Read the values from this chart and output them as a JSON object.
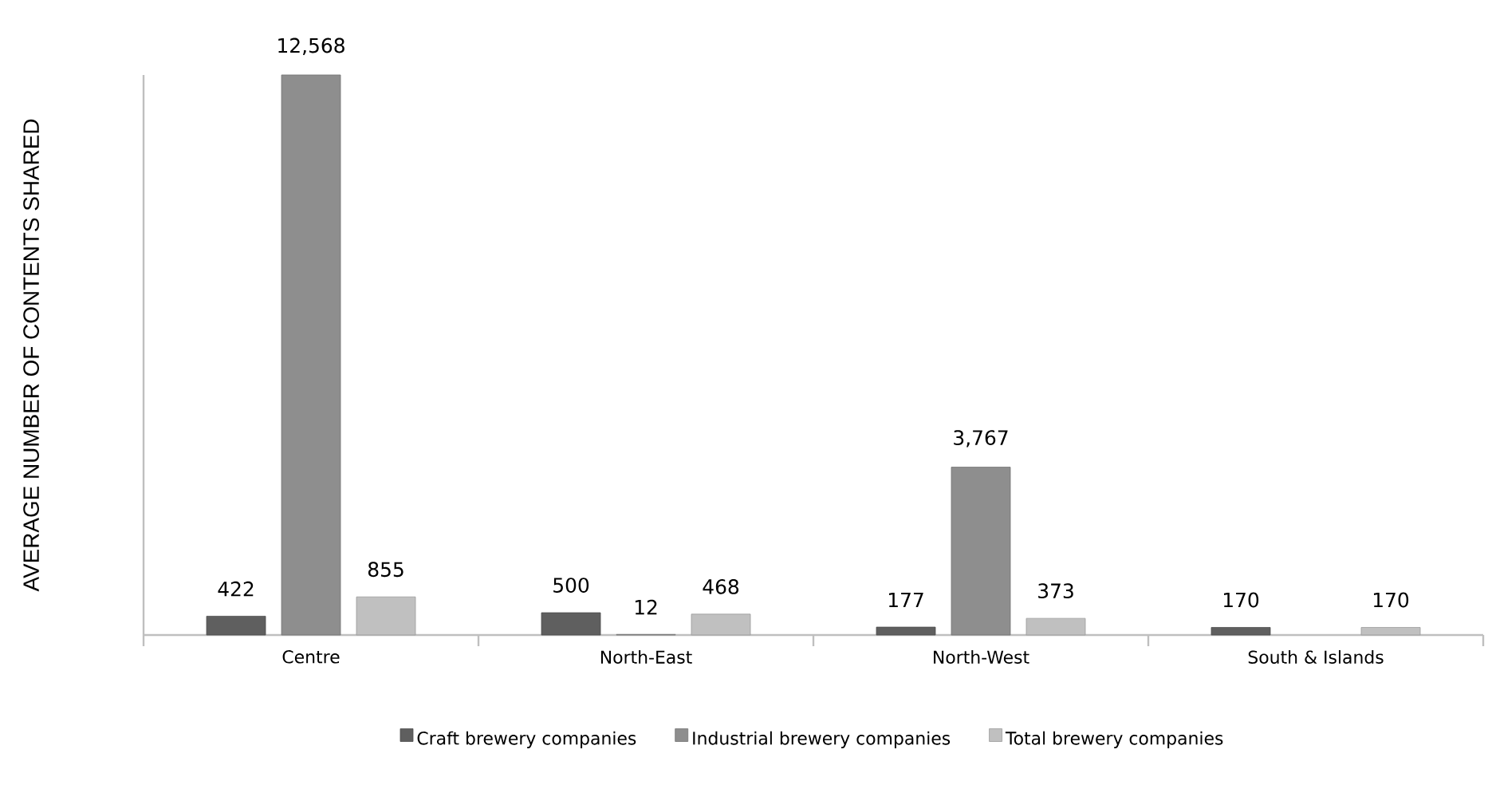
{
  "chart_data": {
    "type": "bar",
    "ylabel": "AVERAGE NUMBER OF CONTENTS SHARED",
    "categories": [
      "Centre",
      "North-East",
      "North-West",
      "South & Islands"
    ],
    "series": [
      {
        "name": "Craft brewery  companies",
        "color": "#5f5f5f",
        "values": [
          422,
          500,
          177,
          170
        ],
        "value_labels": [
          "422",
          "500",
          "177",
          "170"
        ]
      },
      {
        "name": "Industrial brewery  companies",
        "color": "#8e8e8e",
        "values": [
          12568,
          12,
          3767,
          null
        ],
        "value_labels": [
          "12,568",
          "12",
          "3,767",
          null
        ]
      },
      {
        "name": "Total brewery  companies",
        "color": "#c0c0c0",
        "values": [
          855,
          468,
          373,
          170
        ],
        "value_labels": [
          "855",
          "468",
          "373",
          "170"
        ]
      }
    ],
    "legend": "bottom",
    "grid": false
  }
}
